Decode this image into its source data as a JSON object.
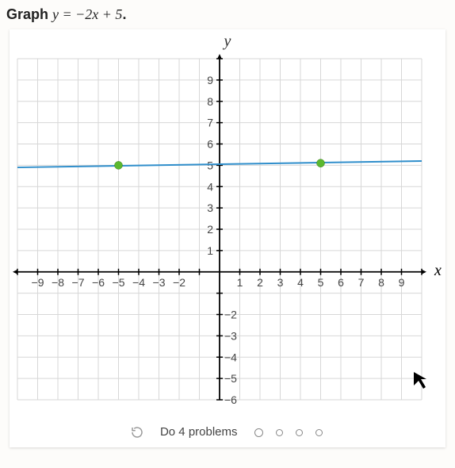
{
  "title": {
    "prefix": "Graph ",
    "equation": "y = −2x + 5",
    "suffix": "."
  },
  "chart": {
    "type": "line",
    "x_axis_label": "x",
    "y_axis_label": "y",
    "xlim": [
      -10,
      10
    ],
    "ylim": [
      -6,
      10
    ],
    "xtick_labels": [
      -9,
      -8,
      -7,
      -6,
      -5,
      -4,
      -3,
      -2,
      1,
      2,
      3,
      4,
      5,
      6,
      7,
      8,
      9
    ],
    "ytick_labels_pos": [
      1,
      2,
      3,
      4,
      5,
      6,
      7,
      8,
      9
    ],
    "ytick_labels_neg": [
      -2,
      -3,
      -4,
      -5,
      -6
    ],
    "grid_color": "#d7d7d7",
    "axis_color": "#000000",
    "background_color": "#ffffff",
    "line_color": "#2f8ecb",
    "line_width": 2,
    "point_color": "#5bb82f",
    "point_radius": 5,
    "points": [
      {
        "x": -5,
        "y": 5
      },
      {
        "x": 5,
        "y": 5.1
      }
    ],
    "line_endpoints": [
      {
        "x": -10,
        "y": 4.9
      },
      {
        "x": 10,
        "y": 5.2
      }
    ],
    "tick_font_size": 14,
    "axis_label_font": "italic 20px Times"
  },
  "footer": {
    "text": "Do 4 problems",
    "progress_total": 4,
    "progress_done": 0
  }
}
